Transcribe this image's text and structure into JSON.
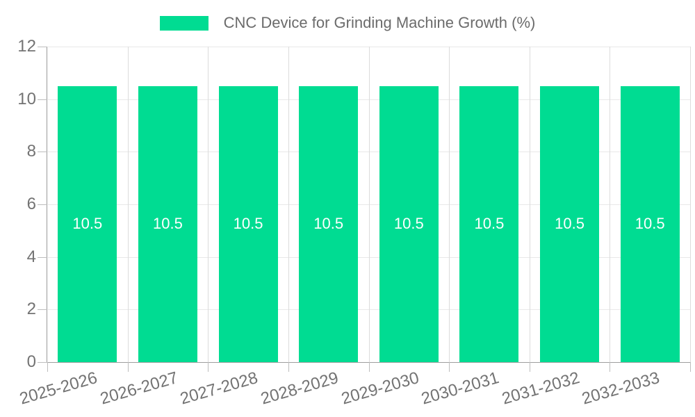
{
  "chart_data": {
    "type": "bar",
    "legend_label": "CNC Device for Grinding Machine Growth (%)",
    "categories": [
      "2025-2026",
      "2026-2027",
      "2027-2028",
      "2028-2029",
      "2029-2030",
      "2030-2031",
      "2031-2032",
      "2032-2033"
    ],
    "values": [
      10.5,
      10.5,
      10.5,
      10.5,
      10.5,
      10.5,
      10.5,
      10.5
    ],
    "bar_labels": [
      "10.5",
      "10.5",
      "10.5",
      "10.5",
      "10.5",
      "10.5",
      "10.5",
      "10.5"
    ],
    "ylim": [
      0,
      12
    ],
    "yticks": [
      0,
      2,
      4,
      6,
      8,
      10,
      12
    ],
    "grid": "horizontal and vertical gridlines on",
    "legend_position": "top-center",
    "x_label_rotation_deg": -16,
    "colors": {
      "bar": "#00dc92",
      "bar_label_text": "#ffffff",
      "axis_label_text": "#737373",
      "legend_text": "#6b6b6b",
      "axis_line": "#999999",
      "gridline_horizontal": "#e8e8e8",
      "gridline_vertical": "#dcdcdc",
      "tick": "#bdbdbd",
      "background": "#ffffff"
    }
  }
}
